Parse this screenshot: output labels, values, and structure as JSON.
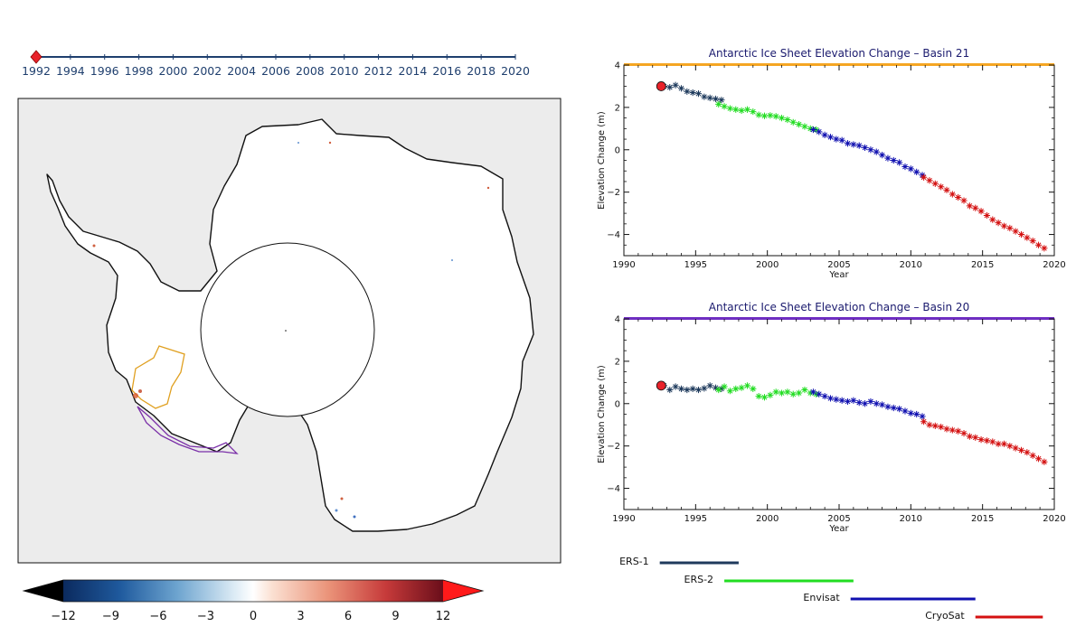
{
  "timeline": {
    "years": [
      "1992",
      "1994",
      "1996",
      "1998",
      "2000",
      "2002",
      "2004",
      "2006",
      "2008",
      "2010",
      "2012",
      "2014",
      "2016",
      "2018",
      "2020"
    ],
    "current_year": 1992,
    "start_year": 1992,
    "end_year": 2020,
    "marker_color": "#e8222a",
    "line_color": "#1f3f6e"
  },
  "map": {
    "background_color": "#ececec",
    "ice_color": "#ffffff",
    "coast_color": "#111111",
    "basin_outlines": [
      {
        "id": "basin-21",
        "color": "#e0a020"
      },
      {
        "id": "basin-20",
        "color": "#7a2fa8"
      }
    ]
  },
  "colorbar": {
    "ticks": [
      "−12",
      "−9",
      "−6",
      "−3",
      "0",
      "3",
      "6",
      "9",
      "12"
    ],
    "min": -12,
    "max": 12,
    "low_color": "#000000",
    "high_color": "#ff1a1a"
  },
  "chart_data": [
    {
      "type": "scatter",
      "title": "Antarctic Ice Sheet Elevation Change – Basin 21",
      "xlabel": "Year",
      "ylabel": "Elevation Change (m)",
      "xlim": [
        1990,
        2020
      ],
      "ylim": [
        -5,
        4
      ],
      "xticks": [
        "1990",
        "1995",
        "2000",
        "2005",
        "2010",
        "2015",
        "2020"
      ],
      "yticks": [
        "4",
        "2",
        "0",
        "−2",
        "−4"
      ],
      "top_bar_color": "#f5a623",
      "marker": {
        "x": 1992.6,
        "y": 3.0,
        "color": "#e8222a"
      },
      "series": [
        {
          "mission": "ERS-1",
          "color": "#1e3a5c",
          "x": [
            1992.8,
            1993.2,
            1993.6,
            1994.0,
            1994.4,
            1994.8,
            1995.2,
            1995.6,
            1996.0,
            1996.4,
            1996.8
          ],
          "y": [
            3.0,
            2.95,
            3.05,
            2.9,
            2.75,
            2.7,
            2.65,
            2.5,
            2.45,
            2.4,
            2.35
          ]
        },
        {
          "mission": "ERS-2",
          "color": "#22dd22",
          "x": [
            1996.6,
            1997.0,
            1997.4,
            1997.8,
            1998.2,
            1998.6,
            1999.0,
            1999.4,
            1999.8,
            2000.2,
            2000.6,
            2001.0,
            2001.4,
            2001.8,
            2002.2,
            2002.6,
            2003.0,
            2003.4
          ],
          "y": [
            2.15,
            2.05,
            1.95,
            1.9,
            1.85,
            1.9,
            1.8,
            1.65,
            1.6,
            1.62,
            1.58,
            1.5,
            1.42,
            1.3,
            1.2,
            1.1,
            1.0,
            0.95
          ]
        },
        {
          "mission": "Envisat",
          "color": "#1010b0",
          "x": [
            2003.2,
            2003.6,
            2004.0,
            2004.4,
            2004.8,
            2005.2,
            2005.6,
            2006.0,
            2006.4,
            2006.8,
            2007.2,
            2007.6,
            2008.0,
            2008.4,
            2008.8,
            2009.2,
            2009.6,
            2010.0,
            2010.4,
            2010.8
          ],
          "y": [
            0.95,
            0.85,
            0.7,
            0.6,
            0.5,
            0.45,
            0.3,
            0.25,
            0.2,
            0.1,
            0.0,
            -0.1,
            -0.25,
            -0.4,
            -0.5,
            -0.6,
            -0.8,
            -0.9,
            -1.05,
            -1.2
          ]
        },
        {
          "mission": "CryoSat",
          "color": "#d41010",
          "x": [
            2010.9,
            2011.3,
            2011.7,
            2012.1,
            2012.5,
            2012.9,
            2013.3,
            2013.7,
            2014.1,
            2014.5,
            2014.9,
            2015.3,
            2015.7,
            2016.1,
            2016.5,
            2016.9,
            2017.3,
            2017.7,
            2018.1,
            2018.5,
            2018.9,
            2019.3
          ],
          "y": [
            -1.3,
            -1.45,
            -1.6,
            -1.75,
            -1.9,
            -2.1,
            -2.25,
            -2.4,
            -2.65,
            -2.75,
            -2.9,
            -3.1,
            -3.3,
            -3.45,
            -3.6,
            -3.7,
            -3.85,
            -4.0,
            -4.15,
            -4.3,
            -4.5,
            -4.65
          ]
        }
      ]
    },
    {
      "type": "scatter",
      "title": "Antarctic Ice Sheet Elevation Change – Basin 20",
      "xlabel": "Year",
      "ylabel": "Elevation Change (m)",
      "xlim": [
        1990,
        2020
      ],
      "ylim": [
        -5,
        4
      ],
      "xticks": [
        "1990",
        "1995",
        "2000",
        "2005",
        "2010",
        "2015",
        "2020"
      ],
      "yticks": [
        "4",
        "2",
        "0",
        "−2",
        "−4"
      ],
      "top_bar_color": "#6f2ec2",
      "marker": {
        "x": 1992.6,
        "y": 0.85,
        "color": "#e8222a"
      },
      "series": [
        {
          "mission": "ERS-1",
          "color": "#1e3a5c",
          "x": [
            1992.8,
            1993.2,
            1993.6,
            1994.0,
            1994.4,
            1994.8,
            1995.2,
            1995.6,
            1996.0,
            1996.4,
            1996.8
          ],
          "y": [
            0.85,
            0.65,
            0.8,
            0.7,
            0.65,
            0.7,
            0.65,
            0.72,
            0.85,
            0.75,
            0.7
          ]
        },
        {
          "mission": "ERS-2",
          "color": "#22dd22",
          "x": [
            1996.6,
            1997.0,
            1997.4,
            1997.8,
            1998.2,
            1998.6,
            1999.0,
            1999.4,
            1999.8,
            2000.2,
            2000.6,
            2001.0,
            2001.4,
            2001.8,
            2002.2,
            2002.6,
            2003.0,
            2003.4
          ],
          "y": [
            0.65,
            0.8,
            0.6,
            0.7,
            0.75,
            0.85,
            0.7,
            0.35,
            0.3,
            0.4,
            0.55,
            0.5,
            0.55,
            0.45,
            0.5,
            0.65,
            0.5,
            0.45
          ]
        },
        {
          "mission": "Envisat",
          "color": "#1010b0",
          "x": [
            2003.2,
            2003.6,
            2004.0,
            2004.4,
            2004.8,
            2005.2,
            2005.6,
            2006.0,
            2006.4,
            2006.8,
            2007.2,
            2007.6,
            2008.0,
            2008.4,
            2008.8,
            2009.2,
            2009.6,
            2010.0,
            2010.4,
            2010.8
          ],
          "y": [
            0.55,
            0.45,
            0.35,
            0.25,
            0.2,
            0.15,
            0.1,
            0.15,
            0.05,
            0.0,
            0.1,
            0.0,
            -0.05,
            -0.15,
            -0.2,
            -0.25,
            -0.35,
            -0.45,
            -0.5,
            -0.6
          ]
        },
        {
          "mission": "CryoSat",
          "color": "#d41010",
          "x": [
            2010.9,
            2011.3,
            2011.7,
            2012.1,
            2012.5,
            2012.9,
            2013.3,
            2013.7,
            2014.1,
            2014.5,
            2014.9,
            2015.3,
            2015.7,
            2016.1,
            2016.5,
            2016.9,
            2017.3,
            2017.7,
            2018.1,
            2018.5,
            2018.9,
            2019.3
          ],
          "y": [
            -0.85,
            -1.0,
            -1.05,
            -1.1,
            -1.2,
            -1.25,
            -1.3,
            -1.4,
            -1.55,
            -1.6,
            -1.7,
            -1.75,
            -1.8,
            -1.9,
            -1.9,
            -2.0,
            -2.1,
            -2.2,
            -2.3,
            -2.45,
            -2.6,
            -2.75
          ]
        }
      ]
    }
  ],
  "missions": [
    {
      "name": "ERS-1",
      "start": 1992.5,
      "end": 1998.0,
      "color": "#1e3a5c"
    },
    {
      "name": "ERS-2",
      "start": 1997.0,
      "end": 2006.0,
      "color": "#22dd22"
    },
    {
      "name": "Envisat",
      "start": 2005.8,
      "end": 2014.5,
      "color": "#1010b0"
    },
    {
      "name": "CryoSat",
      "start": 2014.5,
      "end": 2019.2,
      "color": "#d41010"
    }
  ]
}
